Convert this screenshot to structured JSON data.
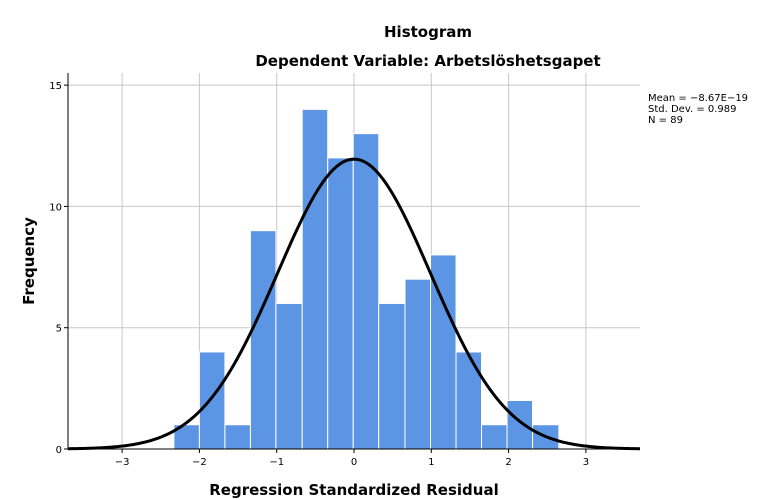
{
  "chart_data": {
    "type": "bar",
    "title": "Histogram",
    "subtitle": "Dependent Variable: Arbetslöshetsgapet",
    "xlabel": "Regression Standardized Residual",
    "ylabel": "Frequency",
    "xlim": [
      -3.7,
      3.7
    ],
    "ylim": [
      0,
      15.5
    ],
    "xticks": [
      -3,
      -2,
      -1,
      0,
      1,
      2,
      3
    ],
    "xtick_labels": [
      "−3",
      "−2",
      "−1",
      "0",
      "1",
      "2",
      "3"
    ],
    "yticks": [
      0,
      5,
      10,
      15
    ],
    "ytick_labels": [
      "0",
      "5",
      "10",
      "15"
    ],
    "grid": true,
    "bins": [
      {
        "x0": -2.33,
        "x1": -2.0,
        "count": 1
      },
      {
        "x0": -2.0,
        "x1": -1.67,
        "count": 4
      },
      {
        "x0": -1.67,
        "x1": -1.34,
        "count": 1
      },
      {
        "x0": -1.34,
        "x1": -1.01,
        "count": 9
      },
      {
        "x0": -1.01,
        "x1": -0.67,
        "count": 6
      },
      {
        "x0": -0.67,
        "x1": -0.34,
        "count": 14
      },
      {
        "x0": -0.34,
        "x1": -0.01,
        "count": 12
      },
      {
        "x0": -0.01,
        "x1": 0.32,
        "count": 13
      },
      {
        "x0": 0.32,
        "x1": 0.66,
        "count": 6
      },
      {
        "x0": 0.66,
        "x1": 0.99,
        "count": 7
      },
      {
        "x0": 0.99,
        "x1": 1.32,
        "count": 8
      },
      {
        "x0": 1.32,
        "x1": 1.65,
        "count": 4
      },
      {
        "x0": 1.65,
        "x1": 1.98,
        "count": 1
      },
      {
        "x0": 1.98,
        "x1": 2.31,
        "count": 2
      },
      {
        "x0": 2.31,
        "x1": 2.65,
        "count": 1
      }
    ],
    "normal_curve": {
      "mean": 0,
      "sd": 0.989,
      "peak": 11.95
    },
    "bar_color": "#5b95e3",
    "bar_edge_color": "#ffffff",
    "curve_color": "#000000",
    "grid_color": "#c8c8c8",
    "stats": {
      "mean": "Mean = −8.67E−19",
      "std_dev": "Std. Dev. = 0.989",
      "n": "N = 89"
    }
  }
}
